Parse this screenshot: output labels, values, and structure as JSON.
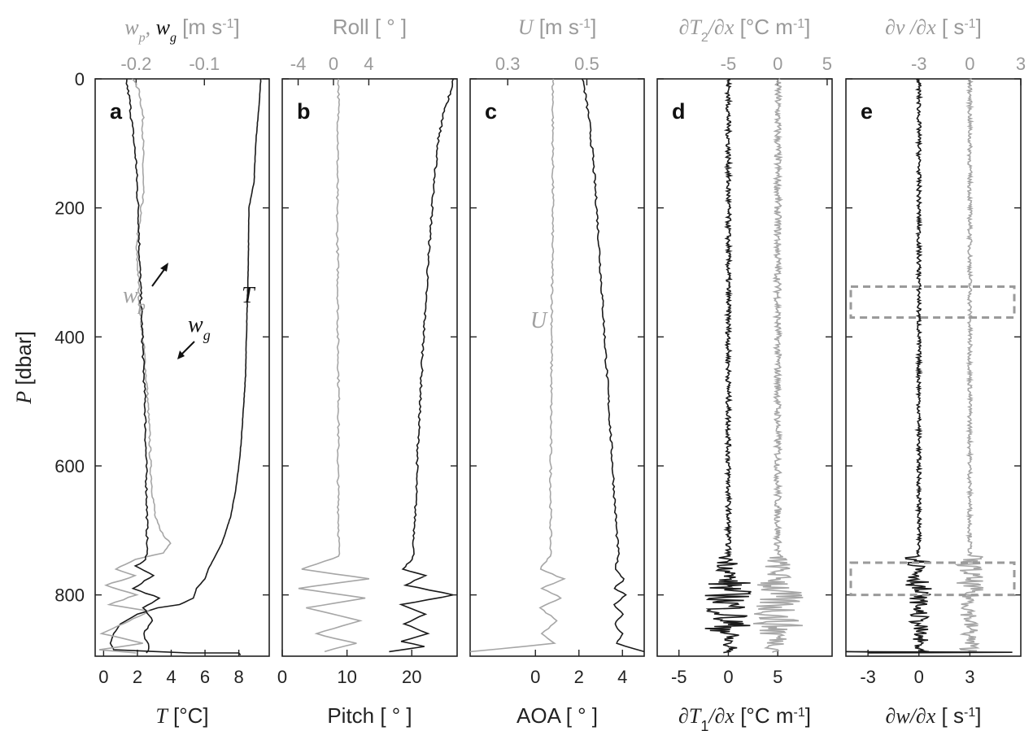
{
  "chart_data": {
    "type": "line",
    "y_axis": {
      "label_var": "P",
      "label_unit": "[dbar]",
      "ticks": [
        "0",
        "200",
        "400",
        "600",
        "800"
      ],
      "range": [
        0,
        895
      ],
      "inverted": true
    },
    "panels": [
      {
        "letter": "a",
        "bottom_axis": {
          "label_var": "T",
          "label_unit": "[°C]",
          "ticks": [
            "0",
            "2",
            "4",
            "6",
            "8"
          ],
          "range": [
            -0.5,
            9.8
          ]
        },
        "top_axis": {
          "label": "[m s-1]",
          "label_parts": {
            "var1": "w",
            "sub1": "p",
            "sep": ", ",
            "var2": "w",
            "sub2": "g",
            "unit": "[m s",
            "exp": "-1",
            "close": "]"
          },
          "ticks": [
            "-0.2",
            "-0.1"
          ],
          "range": [
            -0.26,
            -0.005
          ]
        },
        "annotations": [
          {
            "var": "w",
            "sub": "p",
            "color": "grey"
          },
          {
            "var": "w",
            "sub": "g",
            "color": "black"
          },
          {
            "var": "T",
            "sub": "",
            "color": "black"
          }
        ],
        "series": [
          {
            "name": "T",
            "axis": "bottom",
            "color": "#1a1a1a",
            "points": [
              [
                9.3,
                0
              ],
              [
                9.2,
                40
              ],
              [
                9.0,
                100
              ],
              [
                8.9,
                160
              ],
              [
                8.6,
                200
              ],
              [
                8.55,
                300
              ],
              [
                8.45,
                400
              ],
              [
                8.4,
                460
              ],
              [
                8.3,
                500
              ],
              [
                8.15,
                560
              ],
              [
                8.0,
                600
              ],
              [
                7.8,
                640
              ],
              [
                7.5,
                680
              ],
              [
                7.0,
                720
              ],
              [
                6.5,
                745
              ],
              [
                6.2,
                760
              ],
              [
                6.0,
                775
              ],
              [
                5.5,
                790
              ],
              [
                5.3,
                805
              ],
              [
                4.5,
                815
              ],
              [
                3.2,
                820
              ],
              [
                2.0,
                830
              ],
              [
                1.0,
                845
              ],
              [
                0.6,
                860
              ],
              [
                0.4,
                875
              ],
              [
                0.6,
                885
              ],
              [
                5.0,
                890
              ],
              [
                8.0,
                890
              ],
              [
                8.1,
                893
              ]
            ]
          },
          {
            "name": "wp",
            "axis": "top",
            "color": "#a6a6a6",
            "points": [
              [
                -0.205,
                0
              ],
              [
                -0.195,
                20
              ],
              [
                -0.19,
                60
              ],
              [
                -0.19,
                120
              ],
              [
                -0.19,
                180
              ],
              [
                -0.195,
                220
              ],
              [
                -0.2,
                260
              ],
              [
                -0.197,
                300
              ],
              [
                -0.195,
                350
              ],
              [
                -0.19,
                400
              ],
              [
                -0.187,
                440
              ],
              [
                -0.184,
                480
              ],
              [
                -0.182,
                520
              ],
              [
                -0.18,
                560
              ],
              [
                -0.179,
                600
              ],
              [
                -0.176,
                640
              ],
              [
                -0.172,
                680
              ],
              [
                -0.165,
                700
              ],
              [
                -0.15,
                720
              ],
              [
                -0.16,
                735
              ],
              [
                -0.2,
                745
              ],
              [
                -0.23,
                760
              ],
              [
                -0.2,
                770
              ],
              [
                -0.245,
                785
              ],
              [
                -0.2,
                800
              ],
              [
                -0.24,
                815
              ],
              [
                -0.18,
                825
              ],
              [
                -0.22,
                845
              ],
              [
                -0.25,
                860
              ],
              [
                -0.19,
                875
              ],
              [
                -0.255,
                885
              ],
              [
                -0.2,
                890
              ]
            ]
          },
          {
            "name": "wg",
            "axis": "top",
            "color": "#1a1a1a",
            "points": [
              [
                -0.215,
                0
              ],
              [
                -0.21,
                30
              ],
              [
                -0.205,
                80
              ],
              [
                -0.2,
                130
              ],
              [
                -0.198,
                180
              ],
              [
                -0.196,
                220
              ],
              [
                -0.195,
                280
              ],
              [
                -0.193,
                340
              ],
              [
                -0.191,
                400
              ],
              [
                -0.189,
                450
              ],
              [
                -0.187,
                500
              ],
              [
                -0.186,
                560
              ],
              [
                -0.185,
                620
              ],
              [
                -0.184,
                680
              ],
              [
                -0.184,
                720
              ],
              [
                -0.185,
                745
              ],
              [
                -0.2,
                755
              ],
              [
                -0.175,
                770
              ],
              [
                -0.205,
                790
              ],
              [
                -0.165,
                805
              ],
              [
                -0.19,
                820
              ],
              [
                -0.175,
                840
              ],
              [
                -0.19,
                860
              ],
              [
                -0.18,
                880
              ],
              [
                -0.185,
                890
              ]
            ]
          }
        ]
      },
      {
        "letter": "b",
        "bottom_axis": {
          "label": "Pitch [ ° ]",
          "ticks": [
            "0",
            "10",
            "20"
          ],
          "range": [
            0,
            27
          ]
        },
        "top_axis": {
          "label": "Roll [ ° ]",
          "ticks": [
            "-4",
            "0",
            "4"
          ],
          "range": [
            -5.8,
            14
          ]
        },
        "series": [
          {
            "name": "Roll",
            "axis": "top",
            "color": "#a6a6a6",
            "points": [
              [
                0.6,
                0
              ],
              [
                0.5,
                100
              ],
              [
                0.4,
                200
              ],
              [
                0.5,
                300
              ],
              [
                0.5,
                400
              ],
              [
                0.6,
                500
              ],
              [
                0.5,
                600
              ],
              [
                0.6,
                700
              ],
              [
                0.6,
                740
              ],
              [
                -3.5,
                760
              ],
              [
                4.0,
                775
              ],
              [
                -4.0,
                790
              ],
              [
                3.5,
                805
              ],
              [
                -3.0,
                820
              ],
              [
                3.0,
                840
              ],
              [
                -2.0,
                860
              ],
              [
                2.5,
                875
              ],
              [
                -1.0,
                888
              ]
            ]
          },
          {
            "name": "Pitch",
            "axis": "bottom",
            "color": "#1a1a1a",
            "points": [
              [
                26.5,
                0
              ],
              [
                26.0,
                20
              ],
              [
                25.0,
                50
              ],
              [
                24.0,
                100
              ],
              [
                23.3,
                180
              ],
              [
                22.7,
                260
              ],
              [
                22.2,
                340
              ],
              [
                21.7,
                420
              ],
              [
                21.3,
                500
              ],
              [
                20.9,
                580
              ],
              [
                20.6,
                660
              ],
              [
                20.3,
                720
              ],
              [
                20.2,
                745
              ],
              [
                18.5,
                760
              ],
              [
                22.0,
                770
              ],
              [
                19.0,
                785
              ],
              [
                26.5,
                800
              ],
              [
                18.5,
                815
              ],
              [
                22.0,
                830
              ],
              [
                18.8,
                845
              ],
              [
                22.5,
                860
              ],
              [
                18.5,
                872
              ],
              [
                22.0,
                880
              ],
              [
                16.5,
                888
              ]
            ]
          }
        ]
      },
      {
        "letter": "c",
        "bottom_axis": {
          "label": "AOA [ ° ]",
          "ticks": [
            "0",
            "2",
            "4"
          ],
          "range": [
            -3.0,
            5.0
          ]
        },
        "top_axis": {
          "label_parts": {
            "var": "U",
            "unit": "[m s",
            "exp": "-1",
            "close": "]"
          },
          "ticks": [
            "0.3",
            "0.5"
          ],
          "range": [
            0.205,
            0.645
          ]
        },
        "annotations": [
          {
            "var": "U",
            "color": "grey"
          }
        ],
        "series": [
          {
            "name": "AOA",
            "axis": "bottom",
            "color": "#a6a6a6",
            "points": [
              [
                0.8,
                0
              ],
              [
                0.8,
                200
              ],
              [
                0.75,
                400
              ],
              [
                0.7,
                600
              ],
              [
                0.7,
                740
              ],
              [
                0.2,
                760
              ],
              [
                1.3,
                775
              ],
              [
                0.3,
                790
              ],
              [
                1.2,
                805
              ],
              [
                0.2,
                820
              ],
              [
                1.0,
                840
              ],
              [
                0.3,
                860
              ],
              [
                0.9,
                875
              ],
              [
                -3.0,
                888
              ]
            ]
          },
          {
            "name": "U",
            "axis": "top",
            "color": "#1a1a1a",
            "points": [
              [
                0.49,
                0
              ],
              [
                0.495,
                20
              ],
              [
                0.505,
                60
              ],
              [
                0.515,
                120
              ],
              [
                0.525,
                200
              ],
              [
                0.535,
                300
              ],
              [
                0.545,
                400
              ],
              [
                0.555,
                500
              ],
              [
                0.565,
                600
              ],
              [
                0.575,
                700
              ],
              [
                0.58,
                740
              ],
              [
                0.57,
                760
              ],
              [
                0.595,
                775
              ],
              [
                0.57,
                790
              ],
              [
                0.6,
                800
              ],
              [
                0.57,
                815
              ],
              [
                0.59,
                830
              ],
              [
                0.57,
                845
              ],
              [
                0.59,
                860
              ],
              [
                0.575,
                875
              ],
              [
                0.645,
                888
              ]
            ]
          }
        ]
      },
      {
        "letter": "d",
        "bottom_axis": {
          "label_parts": {
            "pre": "∂T",
            "sub": "1",
            "post": "/∂x",
            "unit": " [°C m",
            "exp": "-1",
            "close": "]"
          },
          "ticks": [
            "-5",
            "0",
            "5"
          ],
          "range": [
            -7.2,
            10.5
          ]
        },
        "top_axis": {
          "label_parts": {
            "pre": "∂T",
            "sub": "2",
            "post": "/∂x",
            "unit": " [°C m",
            "exp": "-1",
            "close": "]"
          },
          "ticks": [
            "-5",
            "0",
            "5"
          ],
          "range": [
            -12.2,
            5.5
          ]
        }
      },
      {
        "letter": "e",
        "bottom_axis": {
          "label_parts": {
            "pre": "∂w/∂x",
            "unit": " [ s",
            "exp": "-1",
            "close": "]"
          },
          "ticks": [
            "-3",
            "0",
            "3"
          ],
          "range": [
            -4.3,
            6.0
          ]
        },
        "top_axis": {
          "label_parts": {
            "pre": "∂v /∂x",
            "unit": " [ s",
            "exp": "-1",
            "close": "]"
          },
          "ticks": [
            "-3",
            "0",
            "3"
          ],
          "range": [
            -7.3,
            3.0
          ]
        },
        "boxes": [
          {
            "p_range": [
              322,
              370
            ]
          },
          {
            "p_range": [
              750,
              800
            ]
          }
        ]
      }
    ]
  }
}
